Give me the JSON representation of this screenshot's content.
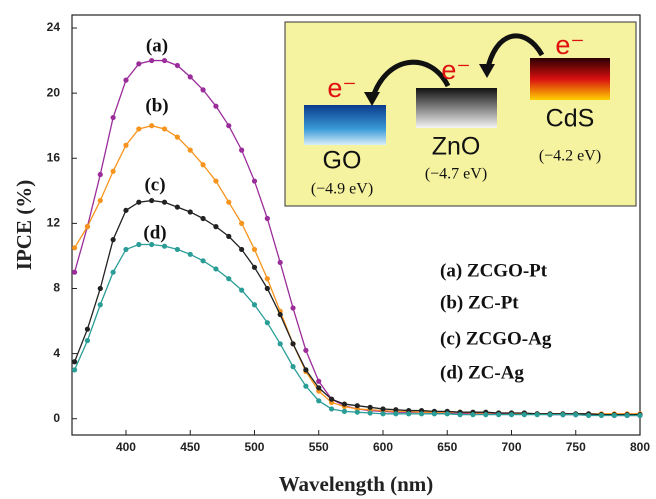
{
  "chart_data": {
    "type": "line",
    "x_label": "Wavelength (nm)",
    "y_label": "IPCE (%)",
    "xlim": [
      358,
      800
    ],
    "ylim": [
      -1,
      24.8
    ],
    "xticks": [
      400,
      450,
      500,
      550,
      600,
      650,
      700,
      750,
      800
    ],
    "yticks": [
      0,
      4,
      8,
      12,
      16,
      20,
      24
    ],
    "x": [
      360,
      370,
      380,
      390,
      400,
      410,
      420,
      430,
      440,
      450,
      460,
      470,
      480,
      490,
      500,
      510,
      520,
      530,
      540,
      550,
      560,
      570,
      580,
      590,
      600,
      610,
      620,
      630,
      640,
      650,
      660,
      670,
      680,
      690,
      700,
      710,
      720,
      730,
      740,
      750,
      760,
      770,
      780,
      790,
      800
    ],
    "series": [
      {
        "name": "(a) ZCGO-Pt",
        "label": "(a)",
        "color": "#9b2d9b",
        "values": [
          9.0,
          11.8,
          15.0,
          18.5,
          20.8,
          21.8,
          22.0,
          22.0,
          21.7,
          21.0,
          20.2,
          19.2,
          18.0,
          16.5,
          14.6,
          12.3,
          9.6,
          6.8,
          4.2,
          2.3,
          1.2,
          0.8,
          0.6,
          0.5,
          0.45,
          0.4,
          0.4,
          0.4,
          0.35,
          0.35,
          0.35,
          0.3,
          0.3,
          0.3,
          0.3,
          0.3,
          0.3,
          0.25,
          0.25,
          0.25,
          0.25,
          0.25,
          0.2,
          0.2,
          0.2
        ]
      },
      {
        "name": "(b) ZC-Pt",
        "label": "(b)",
        "color": "#f7941d",
        "values": [
          10.5,
          11.8,
          13.4,
          15.2,
          16.8,
          17.8,
          18.0,
          17.8,
          17.3,
          16.5,
          15.6,
          14.6,
          13.3,
          12.0,
          10.4,
          8.6,
          6.6,
          4.6,
          2.9,
          1.7,
          1.0,
          0.75,
          0.6,
          0.55,
          0.5,
          0.45,
          0.45,
          0.4,
          0.4,
          0.4,
          0.4,
          0.35,
          0.35,
          0.35,
          0.35,
          0.3,
          0.3,
          0.3,
          0.3,
          0.3,
          0.3,
          0.3,
          0.3,
          0.3,
          0.3
        ]
      },
      {
        "name": "(c) ZCGO-Ag",
        "label": "(c)",
        "color": "#222222",
        "values": [
          3.5,
          5.5,
          8.0,
          11.0,
          12.8,
          13.3,
          13.4,
          13.3,
          13.0,
          12.7,
          12.3,
          11.8,
          11.2,
          10.4,
          9.3,
          8.0,
          6.4,
          4.6,
          3.0,
          1.9,
          1.2,
          0.9,
          0.8,
          0.7,
          0.6,
          0.55,
          0.5,
          0.5,
          0.45,
          0.45,
          0.4,
          0.4,
          0.4,
          0.35,
          0.35,
          0.35,
          0.3,
          0.3,
          0.3,
          0.3,
          0.3,
          0.25,
          0.25,
          0.25,
          0.25
        ]
      },
      {
        "name": "(d) ZC-Ag",
        "label": "(d)",
        "color": "#2a9d96",
        "values": [
          3.0,
          4.8,
          7.0,
          9.0,
          10.4,
          10.7,
          10.7,
          10.6,
          10.4,
          10.1,
          9.7,
          9.2,
          8.6,
          7.9,
          7.0,
          5.9,
          4.6,
          3.2,
          2.0,
          1.1,
          0.6,
          0.45,
          0.4,
          0.35,
          0.3,
          0.3,
          0.3,
          0.3,
          0.3,
          0.3,
          0.25,
          0.25,
          0.25,
          0.25,
          0.25,
          0.25,
          0.25,
          0.25,
          0.25,
          0.25,
          0.2,
          0.2,
          0.2,
          0.2,
          0.2
        ]
      }
    ],
    "inset": {
      "materials": [
        {
          "electron": "e⁻",
          "name": "GO",
          "energy": "(−4.9 eV)"
        },
        {
          "electron": "e⁻",
          "name": "ZnO",
          "energy": "(−4.7 eV)"
        },
        {
          "electron": "e⁻",
          "name": "CdS",
          "energy": "(−4.2 eV)"
        }
      ]
    }
  }
}
